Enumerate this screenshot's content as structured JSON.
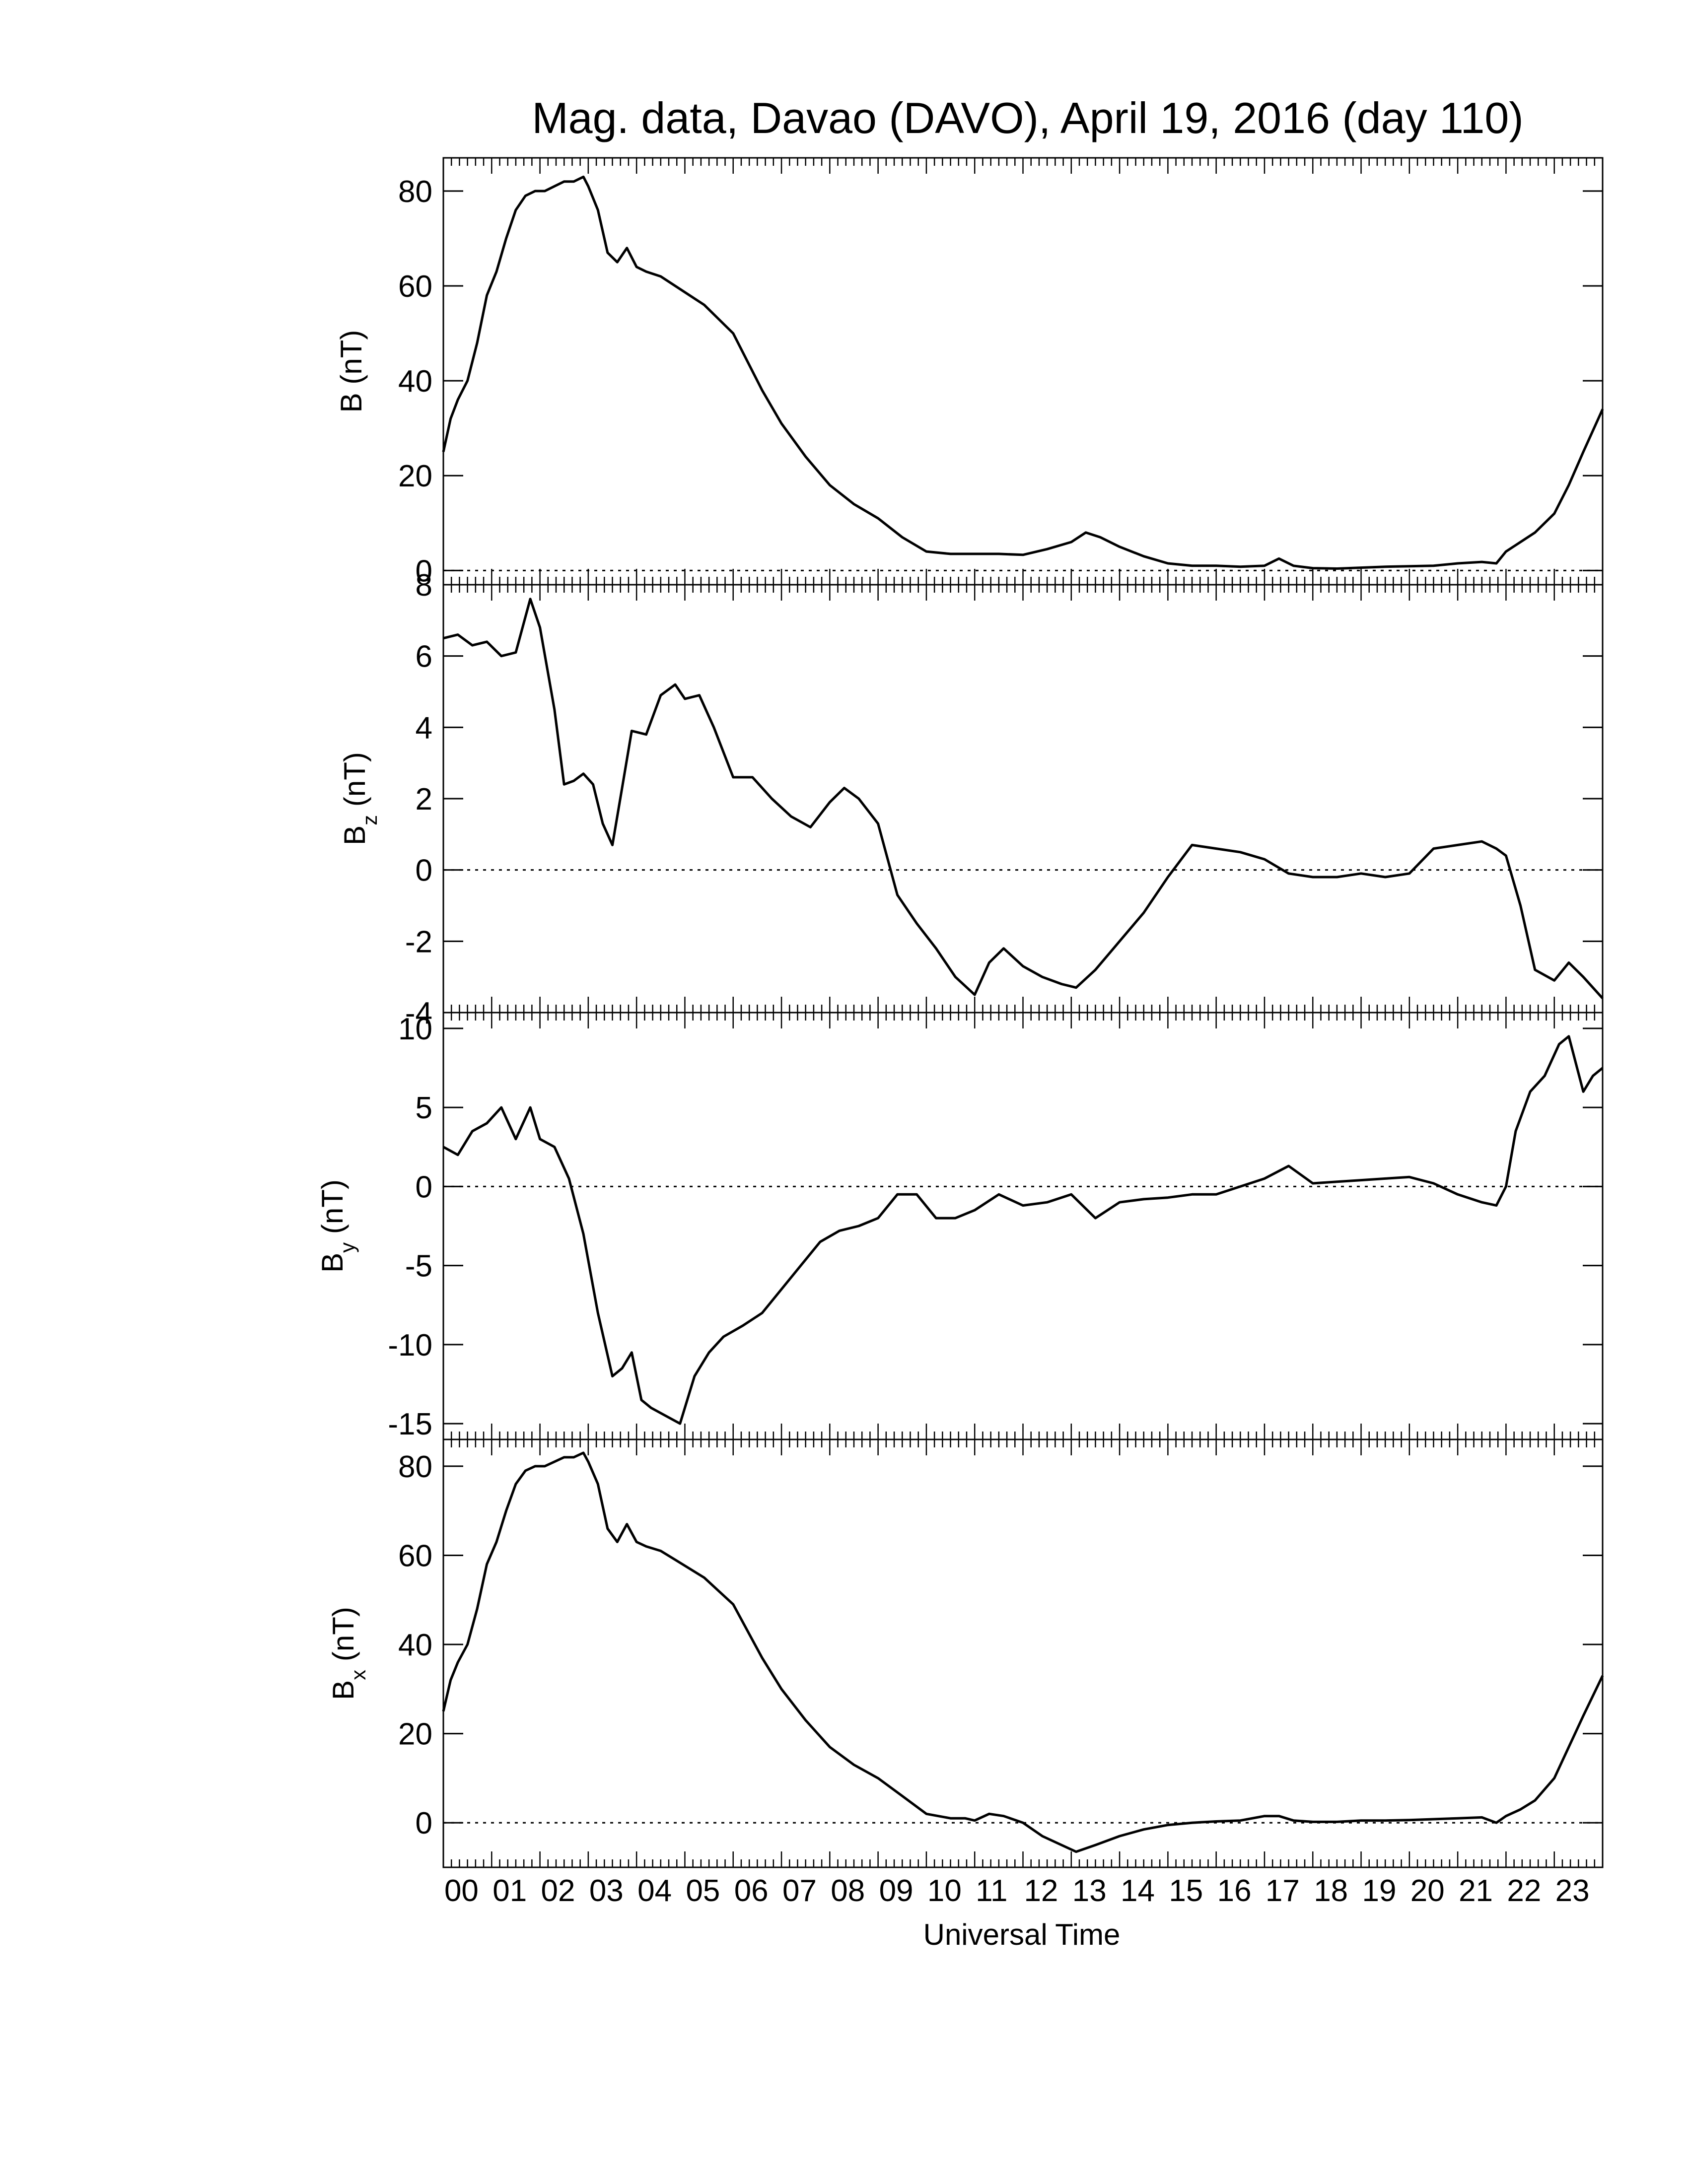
{
  "title": "Mag. data, Davao (DAVO), April 19, 2016 (day 110)",
  "chart_data": [
    {
      "type": "line",
      "ylabel_main": "B",
      "ylabel_sub": "",
      "ylabel_unit": "(nT)",
      "ylim": [
        -3,
        87
      ],
      "yticks": [
        "0",
        "20",
        "40",
        "60",
        "80"
      ],
      "ytick_values": [
        0,
        20,
        40,
        60,
        80
      ],
      "zero_line": true,
      "series": [
        {
          "x": [
            0,
            0.15,
            0.3,
            0.5,
            0.7,
            0.9,
            1.1,
            1.3,
            1.5,
            1.7,
            1.9,
            2.1,
            2.3,
            2.5,
            2.7,
            2.9,
            3.0,
            3.2,
            3.4,
            3.6,
            3.8,
            4.0,
            4.2,
            4.5,
            4.8,
            5.1,
            5.4,
            5.7,
            6.0,
            6.3,
            6.6,
            7.0,
            7.5,
            8.0,
            8.5,
            9.0,
            9.5,
            10.0,
            10.5,
            11.0,
            11.5,
            12.0,
            12.5,
            13.0,
            13.3,
            13.6,
            14.0,
            14.5,
            15.0,
            15.5,
            16.0,
            16.5,
            17.0,
            17.3,
            17.6,
            18.0,
            18.5,
            19.0,
            19.5,
            20.0,
            20.5,
            21.0,
            21.5,
            21.8,
            22.0,
            22.3,
            22.6,
            23.0,
            23.3,
            23.6,
            24.0
          ],
          "y": [
            25,
            32,
            36,
            40,
            48,
            58,
            63,
            70,
            76,
            79,
            80,
            80,
            81,
            82,
            82,
            83,
            81,
            76,
            67,
            65,
            68,
            64,
            63,
            62,
            60,
            58,
            56,
            53,
            50,
            44,
            38,
            31,
            24,
            18,
            14,
            11,
            7,
            4,
            3.5,
            3.5,
            3.5,
            3.3,
            4.5,
            6,
            8,
            7,
            5,
            3,
            1.5,
            1,
            1,
            0.8,
            1,
            2.5,
            1,
            0.5,
            0.4,
            0.6,
            0.8,
            0.9,
            1,
            1.5,
            1.8,
            1.5,
            4,
            6,
            8,
            12,
            18,
            25,
            34
          ]
        }
      ]
    },
    {
      "type": "line",
      "ylabel_main": "B",
      "ylabel_sub": "z",
      "ylabel_unit": "(nT)",
      "ylim": [
        -4,
        8
      ],
      "yticks": [
        "-4",
        "-2",
        "0",
        "2",
        "4",
        "6",
        "8"
      ],
      "ytick_values": [
        -4,
        -2,
        0,
        2,
        4,
        6,
        8
      ],
      "zero_line": true,
      "series": [
        {
          "x": [
            0,
            0.3,
            0.6,
            0.9,
            1.2,
            1.5,
            1.8,
            2.0,
            2.3,
            2.5,
            2.7,
            2.9,
            3.1,
            3.3,
            3.5,
            3.7,
            3.9,
            4.2,
            4.5,
            4.8,
            5.0,
            5.3,
            5.6,
            6.0,
            6.4,
            6.8,
            7.2,
            7.6,
            8.0,
            8.3,
            8.6,
            9.0,
            9.4,
            9.8,
            10.2,
            10.6,
            11.0,
            11.3,
            11.6,
            12.0,
            12.4,
            12.8,
            13.1,
            13.5,
            14.0,
            14.5,
            15.0,
            15.5,
            16.0,
            16.5,
            17.0,
            17.5,
            18.0,
            18.5,
            19.0,
            19.5,
            20.0,
            20.5,
            21.0,
            21.5,
            21.8,
            22.0,
            22.3,
            22.6,
            23.0,
            23.3,
            23.6,
            24.0
          ],
          "y": [
            6.5,
            6.6,
            6.3,
            6.4,
            6.0,
            6.1,
            7.6,
            6.8,
            4.5,
            2.4,
            2.5,
            2.7,
            2.4,
            1.3,
            0.7,
            2.3,
            3.9,
            3.8,
            4.9,
            5.2,
            4.8,
            4.9,
            4.0,
            2.6,
            2.6,
            2.0,
            1.5,
            1.2,
            1.9,
            2.3,
            2.0,
            1.3,
            -0.7,
            -1.5,
            -2.2,
            -3.0,
            -3.5,
            -2.6,
            -2.2,
            -2.7,
            -3.0,
            -3.2,
            -3.3,
            -2.8,
            -2.0,
            -1.2,
            -0.2,
            0.7,
            0.6,
            0.5,
            0.3,
            -0.1,
            -0.2,
            -0.2,
            -0.1,
            -0.2,
            -0.1,
            0.6,
            0.7,
            0.8,
            0.6,
            0.4,
            -1.0,
            -2.8,
            -3.1,
            -2.6,
            -3.0,
            -3.6
          ]
        }
      ]
    },
    {
      "type": "line",
      "ylabel_main": "B",
      "ylabel_sub": "y",
      "ylabel_unit": "(nT)",
      "ylim": [
        -16,
        11
      ],
      "yticks": [
        "-15",
        "-10",
        "-5",
        "0",
        "5",
        "10"
      ],
      "ytick_values": [
        -15,
        -10,
        -5,
        0,
        5,
        10
      ],
      "zero_line": true,
      "series": [
        {
          "x": [
            0,
            0.3,
            0.6,
            0.9,
            1.2,
            1.5,
            1.8,
            2.0,
            2.3,
            2.6,
            2.9,
            3.2,
            3.5,
            3.7,
            3.9,
            4.1,
            4.3,
            4.6,
            4.9,
            5.2,
            5.5,
            5.8,
            6.2,
            6.6,
            7.0,
            7.4,
            7.8,
            8.2,
            8.6,
            9.0,
            9.4,
            9.8,
            10.2,
            10.6,
            11.0,
            11.5,
            12.0,
            12.5,
            13.0,
            13.5,
            14.0,
            14.5,
            15.0,
            15.5,
            16.0,
            16.5,
            17.0,
            17.5,
            18.0,
            18.5,
            19.0,
            19.5,
            20.0,
            20.5,
            21.0,
            21.5,
            21.8,
            22.0,
            22.2,
            22.5,
            22.8,
            23.1,
            23.3,
            23.6,
            23.8,
            24.0
          ],
          "y": [
            2.5,
            2.0,
            3.5,
            4.0,
            5.0,
            3.0,
            5.0,
            3.0,
            2.5,
            0.5,
            -3.0,
            -8.0,
            -12.0,
            -11.5,
            -10.5,
            -13.5,
            -14.0,
            -14.5,
            -15.0,
            -12.0,
            -10.5,
            -9.5,
            -8.8,
            -8.0,
            -6.5,
            -5.0,
            -3.5,
            -2.8,
            -2.5,
            -2.0,
            -0.5,
            -0.5,
            -2.0,
            -2.0,
            -1.5,
            -0.5,
            -1.2,
            -1.0,
            -0.5,
            -2.0,
            -1.0,
            -0.8,
            -0.7,
            -0.5,
            -0.5,
            0.0,
            0.5,
            1.3,
            0.2,
            0.3,
            0.4,
            0.5,
            0.6,
            0.2,
            -0.5,
            -1.0,
            -1.2,
            0.0,
            3.5,
            6.0,
            7.0,
            9.0,
            9.5,
            6.0,
            7.0,
            7.5
          ]
        }
      ]
    },
    {
      "type": "line",
      "ylabel_main": "B",
      "ylabel_sub": "x",
      "ylabel_unit": "(nT)",
      "ylim": [
        -10,
        86
      ],
      "yticks": [
        "0",
        "20",
        "40",
        "60",
        "80"
      ],
      "ytick_values": [
        0,
        20,
        40,
        60,
        80
      ],
      "zero_line": true,
      "series": [
        {
          "x": [
            0,
            0.15,
            0.3,
            0.5,
            0.7,
            0.9,
            1.1,
            1.3,
            1.5,
            1.7,
            1.9,
            2.1,
            2.3,
            2.5,
            2.7,
            2.9,
            3.0,
            3.2,
            3.4,
            3.6,
            3.8,
            4.0,
            4.2,
            4.5,
            4.8,
            5.1,
            5.4,
            5.7,
            6.0,
            6.3,
            6.6,
            7.0,
            7.5,
            8.0,
            8.5,
            9.0,
            9.5,
            10.0,
            10.5,
            10.8,
            11.0,
            11.3,
            11.6,
            12.0,
            12.4,
            12.8,
            13.1,
            13.5,
            14.0,
            14.5,
            15.0,
            15.5,
            16.0,
            16.5,
            17.0,
            17.3,
            17.6,
            18.0,
            18.5,
            19.0,
            19.5,
            20.0,
            20.5,
            21.0,
            21.5,
            21.8,
            22.0,
            22.3,
            22.6,
            23.0,
            23.3,
            23.6,
            24.0
          ],
          "y": [
            25,
            32,
            36,
            40,
            48,
            58,
            63,
            70,
            76,
            79,
            80,
            80,
            81,
            82,
            82,
            83,
            81,
            76,
            66,
            63,
            67,
            63,
            62,
            61,
            59,
            57,
            55,
            52,
            49,
            43,
            37,
            30,
            23,
            17,
            13,
            10,
            6,
            2,
            1,
            1,
            0.5,
            2,
            1.5,
            0,
            -3,
            -5,
            -6.5,
            -5,
            -3,
            -1.5,
            -0.5,
            0,
            0.3,
            0.5,
            1.5,
            1.5,
            0.5,
            0.2,
            0.2,
            0.5,
            0.5,
            0.6,
            0.8,
            1,
            1.2,
            0,
            1.5,
            3,
            5,
            10,
            17,
            24,
            33
          ]
        }
      ]
    }
  ],
  "xaxis": {
    "label": "Universal Time",
    "range": [
      0,
      24
    ],
    "ticks": [
      "00",
      "01",
      "02",
      "03",
      "04",
      "05",
      "06",
      "07",
      "08",
      "09",
      "10",
      "11",
      "12",
      "13",
      "14",
      "15",
      "16",
      "17",
      "18",
      "19",
      "20",
      "21",
      "22",
      "23"
    ]
  }
}
